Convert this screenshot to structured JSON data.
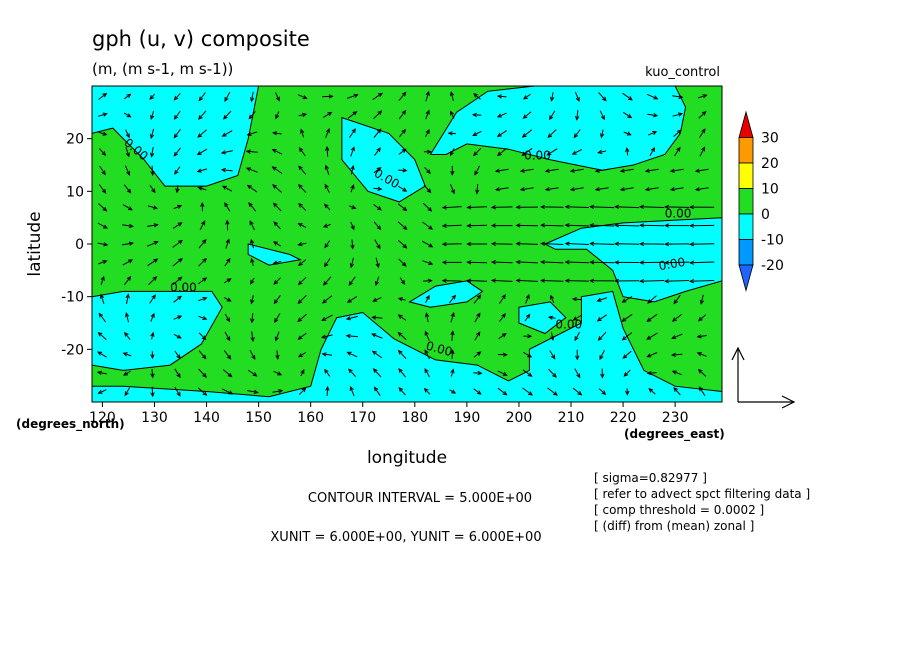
{
  "chart_data": {
    "type": "contour",
    "title": "gph (u, v) composite",
    "units": "(m, (m s-1, m s-1))",
    "run_label": "kuo_control",
    "xlabel": "longitude",
    "ylabel": "latitude",
    "x_unit_label": "(degrees_east)",
    "y_unit_label": "(degrees_north)",
    "xlim": [
      118,
      239
    ],
    "ylim": [
      -30,
      30
    ],
    "x_ticks": [
      {
        "value": 120,
        "label": "120"
      },
      {
        "value": 130,
        "label": "130"
      },
      {
        "value": 140,
        "label": "140"
      },
      {
        "value": 150,
        "label": "150"
      },
      {
        "value": 160,
        "label": "160"
      },
      {
        "value": 170,
        "label": "170"
      },
      {
        "value": 180,
        "label": "180"
      },
      {
        "value": 190,
        "label": "190"
      },
      {
        "value": 200,
        "label": "200"
      },
      {
        "value": 210,
        "label": "210"
      },
      {
        "value": 220,
        "label": "220"
      },
      {
        "value": 230,
        "label": "230"
      }
    ],
    "y_ticks": [
      {
        "value": 20,
        "label": "20"
      },
      {
        "value": 10,
        "label": "10"
      },
      {
        "value": 0,
        "label": "0"
      },
      {
        "value": -10,
        "label": "-10"
      },
      {
        "value": -20,
        "label": "-20"
      }
    ],
    "colorbar": {
      "levels": [
        {
          "value": 30,
          "label": "30"
        },
        {
          "value": 20,
          "label": "20"
        },
        {
          "value": 10,
          "label": "10"
        },
        {
          "value": 0,
          "label": "0"
        },
        {
          "value": -10,
          "label": "-10"
        },
        {
          "value": -20,
          "label": "-20"
        }
      ],
      "colors": [
        "#e60000",
        "#ff9900",
        "#ffff00",
        "#22dd22",
        "#00ffff",
        "#0099ff",
        "#1e64ff"
      ]
    },
    "fill_colors": {
      "above_zero": "#22dd22",
      "below_zero": "#00ffff"
    },
    "contour_labels": [
      {
        "text": "0.00",
        "lon": 124,
        "lat": 19,
        "rot": 40
      },
      {
        "text": "0.00",
        "lon": 172,
        "lat": 13,
        "rot": 30
      },
      {
        "text": "0.00",
        "lon": 201,
        "lat": 16,
        "rot": 0
      },
      {
        "text": "0.00",
        "lon": 228,
        "lat": 5,
        "rot": 0
      },
      {
        "text": "0.00",
        "lon": 133,
        "lat": -9,
        "rot": 0
      },
      {
        "text": "0.00",
        "lon": 227,
        "lat": -5,
        "rot": -10
      },
      {
        "text": "0.00",
        "lon": 207,
        "lat": -16,
        "rot": 0
      },
      {
        "text": "0.00",
        "lon": 182,
        "lat": -20,
        "rot": 15
      }
    ],
    "below_zero_regions": [
      [
        [
          118,
          30
        ],
        [
          150,
          30
        ],
        [
          148,
          20
        ],
        [
          146,
          13
        ],
        [
          140,
          11
        ],
        [
          132,
          11
        ],
        [
          128,
          16
        ],
        [
          122,
          22
        ],
        [
          118,
          21
        ]
      ],
      [
        [
          166,
          24
        ],
        [
          175,
          21
        ],
        [
          180,
          16
        ],
        [
          182,
          11
        ],
        [
          177,
          8
        ],
        [
          171,
          10
        ],
        [
          166,
          16
        ]
      ],
      [
        [
          183,
          17
        ],
        [
          188,
          25
        ],
        [
          194,
          29
        ],
        [
          203,
          30
        ],
        [
          230,
          30
        ],
        [
          232,
          26
        ],
        [
          231,
          21
        ],
        [
          228,
          17
        ],
        [
          222,
          15
        ],
        [
          216,
          14
        ],
        [
          206,
          16
        ],
        [
          198,
          18
        ],
        [
          190,
          19
        ],
        [
          186,
          17
        ]
      ],
      [
        [
          205,
          0
        ],
        [
          212,
          3
        ],
        [
          220,
          4
        ],
        [
          239,
          5
        ],
        [
          239,
          -7
        ],
        [
          232,
          -9
        ],
        [
          226,
          -11
        ],
        [
          220,
          -10
        ],
        [
          218,
          -5
        ],
        [
          213,
          -1
        ],
        [
          207,
          -1
        ]
      ],
      [
        [
          148,
          0
        ],
        [
          156,
          -2
        ],
        [
          158,
          -3
        ],
        [
          152,
          -4
        ],
        [
          148,
          -2
        ]
      ],
      [
        [
          118,
          -10
        ],
        [
          124,
          -9
        ],
        [
          133,
          -9
        ],
        [
          141,
          -9
        ],
        [
          143,
          -12
        ],
        [
          139,
          -19
        ],
        [
          133,
          -23
        ],
        [
          124,
          -24
        ],
        [
          118,
          -23
        ]
      ],
      [
        [
          179,
          -11
        ],
        [
          184,
          -8
        ],
        [
          190,
          -7
        ],
        [
          193,
          -9
        ],
        [
          190,
          -11
        ],
        [
          183,
          -12
        ]
      ],
      [
        [
          200,
          -12
        ],
        [
          206,
          -11
        ],
        [
          209,
          -14
        ],
        [
          205,
          -17
        ],
        [
          200,
          -15
        ]
      ],
      [
        [
          212,
          -10
        ],
        [
          218,
          -9
        ],
        [
          220,
          -16
        ],
        [
          224,
          -24
        ],
        [
          230,
          -27
        ],
        [
          239,
          -28
        ],
        [
          239,
          -30
        ],
        [
          118,
          -30
        ],
        [
          118,
          -27
        ],
        [
          124,
          -27
        ],
        [
          140,
          -28
        ],
        [
          152,
          -29
        ],
        [
          160,
          -27
        ],
        [
          162,
          -20
        ],
        [
          165,
          -14
        ],
        [
          170,
          -13
        ],
        [
          176,
          -18
        ],
        [
          184,
          -22
        ],
        [
          192,
          -23
        ],
        [
          198,
          -26
        ],
        [
          202,
          -24
        ],
        [
          202,
          -20
        ],
        [
          208,
          -17
        ],
        [
          212,
          -15
        ]
      ]
    ],
    "wind_field": {
      "style": "arrows (u, v)",
      "reference_vector": {
        "u": 6,
        "v": 6
      }
    }
  },
  "annotations": {
    "contour_interval": "CONTOUR INTERVAL = 5.000E+00",
    "vector_units": "XUNIT = 6.000E+00, YUNIT = 6.000E+00",
    "notes": [
      "[ sigma=0.82977 ]",
      "[ refer to advect spct filtering data ]",
      "[ comp threshold = 0.0002 ]",
      "[ (diff) from (mean) zonal ]"
    ]
  },
  "colors": {
    "arrow": "#000000",
    "contour": "#000000",
    "background": "#ffffff"
  }
}
